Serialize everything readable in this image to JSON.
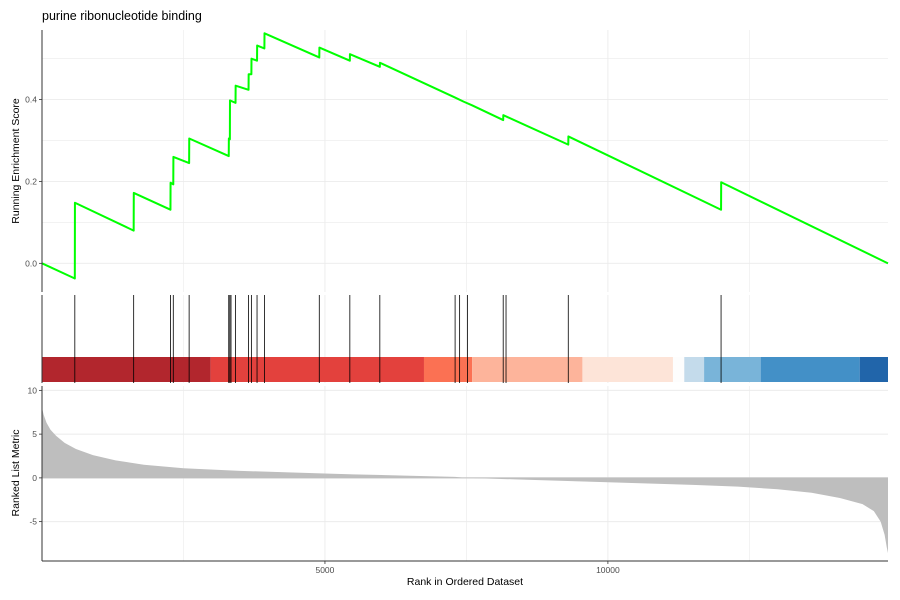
{
  "chart_data": {
    "type": "line",
    "title": "purine ribonucleotide binding",
    "xlabel": "Rank in Ordered Dataset",
    "xlim": [
      0,
      14950
    ],
    "grid": true,
    "x_ticks": [
      {
        "value": 5000,
        "label": "5000"
      },
      {
        "value": 10000,
        "label": "10000"
      }
    ],
    "colors": {
      "running_score_line": "#00ff00",
      "hit_line": "#000000",
      "ranked_metric_fill": "#bebebe",
      "gridline": "#ebebeb"
    },
    "panels": {
      "running_score": {
        "ylabel": "Running Enrichment Score",
        "ylim": [
          -0.07,
          0.57
        ],
        "y_ticks": [
          {
            "value": 0.0,
            "label": "0.0"
          },
          {
            "value": 0.2,
            "label": "0.2"
          },
          {
            "value": 0.4,
            "label": "0.4"
          }
        ],
        "points": [
          [
            0,
            0.0
          ],
          [
            580,
            -0.037
          ],
          [
            582,
            0.148
          ],
          [
            1620,
            0.08
          ],
          [
            1622,
            0.172
          ],
          [
            2270,
            0.131
          ],
          [
            2272,
            0.197
          ],
          [
            2320,
            0.193
          ],
          [
            2322,
            0.26
          ],
          [
            2600,
            0.245
          ],
          [
            2602,
            0.305
          ],
          [
            3300,
            0.262
          ],
          [
            3302,
            0.305
          ],
          [
            3320,
            0.303
          ],
          [
            3322,
            0.398
          ],
          [
            3420,
            0.392
          ],
          [
            3422,
            0.434
          ],
          [
            3650,
            0.424
          ],
          [
            3652,
            0.462
          ],
          [
            3700,
            0.462
          ],
          [
            3702,
            0.5
          ],
          [
            3800,
            0.495
          ],
          [
            3802,
            0.532
          ],
          [
            3930,
            0.525
          ],
          [
            3932,
            0.562
          ],
          [
            4900,
            0.503
          ],
          [
            4902,
            0.527
          ],
          [
            5440,
            0.495
          ],
          [
            5442,
            0.511
          ],
          [
            5970,
            0.48
          ],
          [
            5972,
            0.49
          ],
          [
            7300,
            0.405
          ],
          [
            7450,
            0.395
          ],
          [
            7600,
            0.386
          ],
          [
            8150,
            0.35
          ],
          [
            8152,
            0.362
          ],
          [
            8230,
            0.357
          ],
          [
            9300,
            0.29
          ],
          [
            9302,
            0.31
          ],
          [
            12000,
            0.131
          ],
          [
            12002,
            0.198
          ],
          [
            14950,
            0.0
          ]
        ]
      },
      "hits": {
        "positions": [
          580,
          1620,
          2270,
          2320,
          2600,
          3300,
          3320,
          3340,
          3420,
          3650,
          3700,
          3800,
          3930,
          4900,
          5440,
          5970,
          7300,
          7380,
          7520,
          8150,
          8200,
          9300,
          12000
        ]
      },
      "heat_band": [
        {
          "start": 0,
          "end": 2980,
          "color": "#b2262d"
        },
        {
          "start": 2980,
          "end": 6750,
          "color": "#e3413d"
        },
        {
          "start": 6750,
          "end": 7600,
          "color": "#fb7153"
        },
        {
          "start": 7600,
          "end": 9550,
          "color": "#fdb49b"
        },
        {
          "start": 9550,
          "end": 11150,
          "color": "#fde4d8"
        },
        {
          "start": 11150,
          "end": 11350,
          "color": "#fdfdfd"
        },
        {
          "start": 11350,
          "end": 11700,
          "color": "#c4dbeb"
        },
        {
          "start": 11700,
          "end": 12700,
          "color": "#79b4d9"
        },
        {
          "start": 12700,
          "end": 14450,
          "color": "#4390c7"
        },
        {
          "start": 14450,
          "end": 14950,
          "color": "#2165aa"
        }
      ],
      "ranked_metric": {
        "ylabel": "Ranked List Metric",
        "ylim": [
          -9.5,
          10.5
        ],
        "y_ticks": [
          {
            "value": 10,
            "label": "10"
          },
          {
            "value": 5,
            "label": "5"
          },
          {
            "value": 0,
            "label": "0"
          },
          {
            "value": -5,
            "label": "-5"
          }
        ],
        "points": [
          [
            0,
            8.0
          ],
          [
            30,
            7.2
          ],
          [
            80,
            6.3
          ],
          [
            150,
            5.5
          ],
          [
            250,
            4.8
          ],
          [
            400,
            4.0
          ],
          [
            600,
            3.3
          ],
          [
            900,
            2.6
          ],
          [
            1300,
            2.0
          ],
          [
            1800,
            1.5
          ],
          [
            2500,
            1.1
          ],
          [
            3500,
            0.8
          ],
          [
            4500,
            0.6
          ],
          [
            5500,
            0.4
          ],
          [
            6500,
            0.25
          ],
          [
            7300,
            0.12
          ],
          [
            7500,
            0.0
          ],
          [
            8500,
            -0.2
          ],
          [
            9500,
            -0.4
          ],
          [
            10500,
            -0.6
          ],
          [
            11500,
            -0.8
          ],
          [
            12300,
            -1.0
          ],
          [
            13000,
            -1.3
          ],
          [
            13600,
            -1.7
          ],
          [
            14100,
            -2.3
          ],
          [
            14500,
            -3.0
          ],
          [
            14700,
            -3.8
          ],
          [
            14820,
            -5.0
          ],
          [
            14890,
            -6.5
          ],
          [
            14930,
            -8.0
          ],
          [
            14950,
            -8.6
          ]
        ]
      }
    }
  }
}
